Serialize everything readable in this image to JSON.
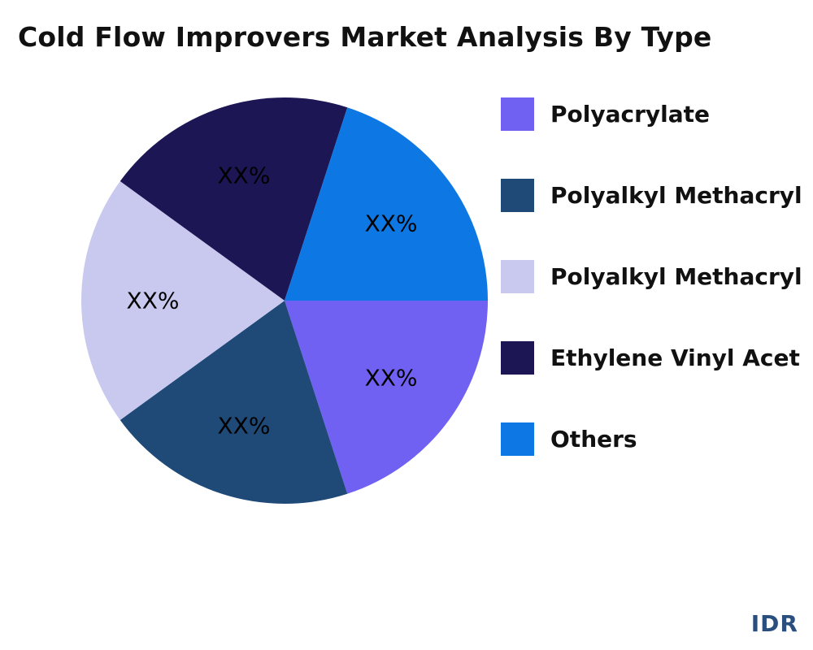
{
  "title": "Cold Flow Improvers Market Analysis By Type",
  "brand": "IDR",
  "chart_data": {
    "type": "pie",
    "title": "Cold Flow Improvers Market Analysis By Type",
    "legend_position": "right",
    "slices": [
      {
        "name": "Polyacrylate",
        "value": 20,
        "label": "XX%",
        "color": "#7061f2"
      },
      {
        "name": "Polyalkyl Methacryl",
        "value": 20,
        "label": "XX%",
        "color": "#1f4a78"
      },
      {
        "name": "Polyalkyl Methacryl",
        "value": 20,
        "label": "XX%",
        "color": "#c9c9f0"
      },
      {
        "name": "Ethylene Vinyl Acet",
        "value": 20,
        "label": "XX%",
        "color": "#1c1654"
      },
      {
        "name": "Others",
        "value": 20,
        "label": "XX%",
        "color": "#0d78e4"
      }
    ]
  }
}
